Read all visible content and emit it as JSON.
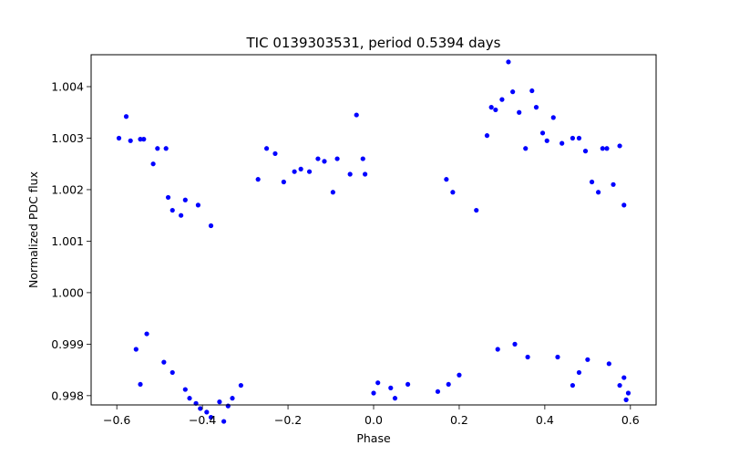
{
  "chart_data": {
    "type": "scatter",
    "title": "TIC 0139303531, period 0.5394 days",
    "xlabel": "Phase",
    "ylabel": "Normalized PDC flux",
    "xlim": [
      -0.66,
      0.66
    ],
    "ylim": [
      0.99782,
      1.00462
    ],
    "xticks": [
      -0.6,
      -0.4,
      -0.2,
      0.0,
      0.2,
      0.4,
      0.6
    ],
    "xtick_labels": [
      "−0.6",
      "−0.4",
      "−0.2",
      "0.0",
      "0.2",
      "0.4",
      "0.6"
    ],
    "yticks": [
      0.998,
      0.999,
      1.0,
      1.001,
      1.002,
      1.003,
      1.004
    ],
    "ytick_labels": [
      "0.998",
      "0.999",
      "1.000",
      "1.001",
      "1.002",
      "1.003",
      "1.004"
    ],
    "grid": false,
    "marker_color": "#0000ff",
    "series": [
      {
        "points": [
          [
            -0.595,
            1.003
          ],
          [
            -0.578,
            1.00342
          ],
          [
            -0.568,
            1.00295
          ],
          [
            -0.545,
            1.00298
          ],
          [
            -0.537,
            1.00298
          ],
          [
            -0.515,
            1.0025
          ],
          [
            -0.505,
            1.0028
          ],
          [
            -0.485,
            1.0028
          ],
          [
            -0.545,
            0.99822
          ],
          [
            -0.555,
            0.9989
          ],
          [
            -0.53,
            0.9992
          ],
          [
            -0.49,
            0.99865
          ],
          [
            -0.47,
            0.99845
          ],
          [
            -0.44,
            0.99812
          ],
          [
            -0.43,
            0.99795
          ],
          [
            -0.415,
            0.99785
          ],
          [
            -0.405,
            0.99775
          ],
          [
            -0.39,
            0.99768
          ],
          [
            -0.38,
            0.99758
          ],
          [
            -0.36,
            0.99788
          ],
          [
            -0.35,
            0.9975
          ],
          [
            -0.34,
            0.9978
          ],
          [
            -0.33,
            0.99795
          ],
          [
            -0.31,
            0.9982
          ],
          [
            -0.48,
            1.00185
          ],
          [
            -0.47,
            1.0016
          ],
          [
            -0.45,
            1.0015
          ],
          [
            -0.44,
            1.0018
          ],
          [
            -0.41,
            1.0017
          ],
          [
            -0.38,
            1.0013
          ],
          [
            -0.27,
            1.0022
          ],
          [
            -0.25,
            1.0028
          ],
          [
            -0.23,
            1.0027
          ],
          [
            -0.21,
            1.00215
          ],
          [
            -0.185,
            1.00235
          ],
          [
            -0.17,
            1.0024
          ],
          [
            -0.15,
            1.00235
          ],
          [
            -0.13,
            1.0026
          ],
          [
            -0.115,
            1.00255
          ],
          [
            -0.095,
            1.00195
          ],
          [
            -0.085,
            1.0026
          ],
          [
            -0.055,
            1.0023
          ],
          [
            -0.04,
            1.00345
          ],
          [
            -0.025,
            1.0026
          ],
          [
            -0.02,
            1.0023
          ],
          [
            0.0,
            0.99805
          ],
          [
            0.01,
            0.99825
          ],
          [
            0.04,
            0.99815
          ],
          [
            0.05,
            0.99795
          ],
          [
            0.08,
            0.99822
          ],
          [
            0.15,
            0.99808
          ],
          [
            0.175,
            0.99822
          ],
          [
            0.2,
            0.9984
          ],
          [
            0.185,
            1.00195
          ],
          [
            0.17,
            1.0022
          ],
          [
            0.24,
            1.0016
          ],
          [
            0.265,
            1.00305
          ],
          [
            0.275,
            1.0036
          ],
          [
            0.285,
            1.00355
          ],
          [
            0.3,
            1.00375
          ],
          [
            0.315,
            1.00448
          ],
          [
            0.325,
            1.0039
          ],
          [
            0.34,
            1.0035
          ],
          [
            0.355,
            1.0028
          ],
          [
            0.37,
            1.00392
          ],
          [
            0.38,
            1.0036
          ],
          [
            0.395,
            1.0031
          ],
          [
            0.405,
            1.00295
          ],
          [
            0.42,
            1.0034
          ],
          [
            0.44,
            1.0029
          ],
          [
            0.465,
            1.003
          ],
          [
            0.48,
            1.003
          ],
          [
            0.495,
            1.00275
          ],
          [
            0.51,
            1.00215
          ],
          [
            0.525,
            1.00195
          ],
          [
            0.535,
            1.0028
          ],
          [
            0.545,
            1.0028
          ],
          [
            0.56,
            1.0021
          ],
          [
            0.575,
            1.00285
          ],
          [
            0.585,
            1.0017
          ],
          [
            0.465,
            0.9982
          ],
          [
            0.48,
            0.99845
          ],
          [
            0.5,
            0.9987
          ],
          [
            0.43,
            0.99875
          ],
          [
            0.33,
            0.999
          ],
          [
            0.36,
            0.99875
          ],
          [
            0.575,
            0.9982
          ],
          [
            0.59,
            0.99792
          ],
          [
            0.595,
            0.99805
          ],
          [
            0.585,
            0.99835
          ],
          [
            0.29,
            0.9989
          ],
          [
            0.55,
            0.99862
          ]
        ]
      }
    ]
  }
}
